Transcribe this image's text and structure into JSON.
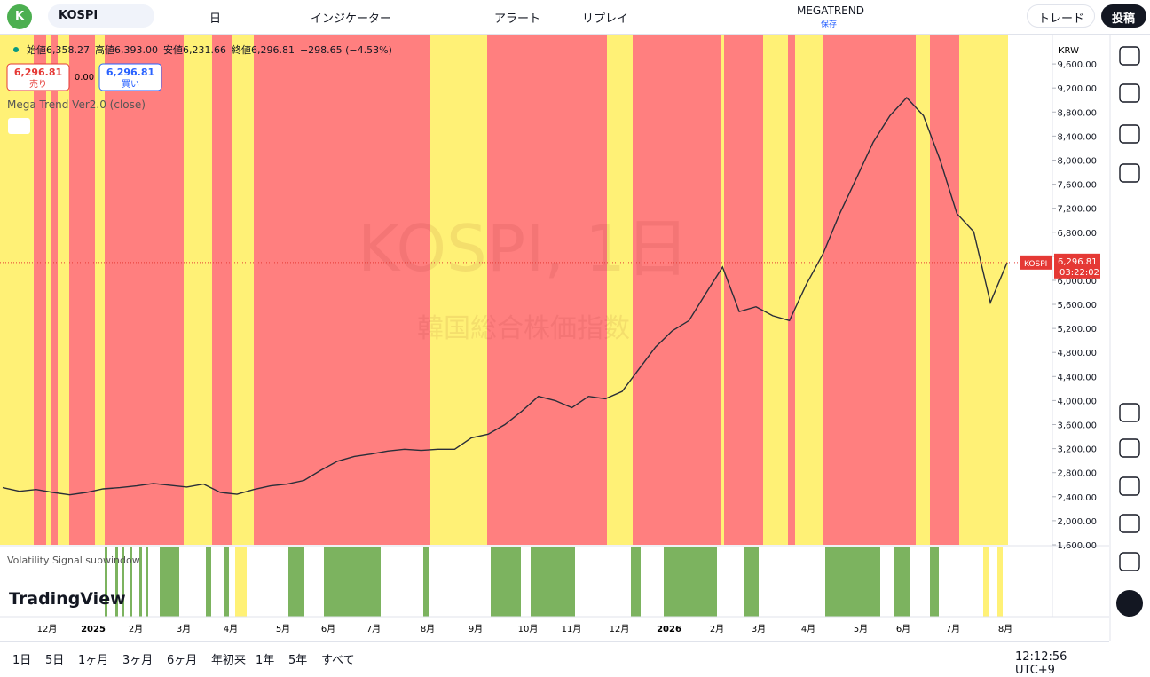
{
  "toolbar": {
    "avatar": "K",
    "symbol": "KOSPI",
    "interval": "日",
    "indicators": "インジケーター",
    "alert": "アラート",
    "replay": "リプレイ",
    "layout_name": "MEGATREND",
    "layout_status": "保存",
    "trade": "トレード",
    "publish": "投稿"
  },
  "legend": {
    "open_label": "始値",
    "open": "6,358.27",
    "high_label": "高値",
    "high": "6,393.00",
    "low_label": "安値",
    "low": "6,231.66",
    "close_label": "終値",
    "close": "6,296.81",
    "change": "−298.65 (−4.53%)"
  },
  "order": {
    "sell_price": "6,296.81",
    "sell": "売り",
    "spread": "0.00",
    "buy_price": "6,296.81",
    "buy": "買い"
  },
  "indicator": "Mega Trend Ver2.0 (close)",
  "watermark": {
    "title": "KOSPI, 1日",
    "subtitle": "韓国総合株価指数"
  },
  "subwindow": "Volatility Signal subwindow",
  "brand": "TradingView",
  "currency": "KRW",
  "last_price": {
    "symbol": "KOSPI",
    "price": "6,296.81",
    "countdown": "03:22:02"
  },
  "price_series": {
    "values": [
      2550,
      2490,
      2520,
      2470,
      2430,
      2470,
      2530,
      2550,
      2580,
      2620,
      2590,
      2560,
      2610,
      2470,
      2440,
      2520,
      2580,
      2610,
      2670,
      2840,
      2990,
      3070,
      3110,
      3160,
      3190,
      3170,
      3190,
      3190,
      3380,
      3440,
      3600,
      3820,
      4070,
      4000,
      3880,
      4070,
      4030,
      4150,
      4520,
      4890,
      5160,
      5330,
      5780,
      6220,
      5480,
      5560,
      5410,
      5330,
      5930,
      6440,
      7110,
      7700,
      8300,
      8740,
      9040,
      8740,
      8000,
      7110,
      6810,
      5630,
      6296.81
    ]
  },
  "price_axis": {
    "ylim": [
      1570,
      10074
    ],
    "yticks": [
      {
        "value": 1600,
        "label": "1,600.00"
      },
      {
        "value": 2000,
        "label": "2,000.00"
      },
      {
        "value": 2400,
        "label": "2,400.00"
      },
      {
        "value": 2800,
        "label": "2,800.00"
      },
      {
        "value": 3200,
        "label": "3,200.00"
      },
      {
        "value": 3600,
        "label": "3,600.00"
      },
      {
        "value": 4000,
        "label": "4,000.00"
      },
      {
        "value": 4400,
        "label": "4,400.00"
      },
      {
        "value": 4800,
        "label": "4,800.00"
      },
      {
        "value": 5200,
        "label": "5,200.00"
      },
      {
        "value": 5600,
        "label": "5,600.00"
      },
      {
        "value": 6000,
        "label": "6,000.00"
      },
      {
        "value": 6400,
        "label": "6,400.00"
      },
      {
        "value": 6800,
        "label": "6,800.00"
      },
      {
        "value": 7200,
        "label": "7,200.00"
      },
      {
        "value": 7600,
        "label": "7,600.00"
      },
      {
        "value": 8000,
        "label": "8,000.00"
      },
      {
        "value": 8400,
        "label": "8,400.00"
      },
      {
        "value": 8800,
        "label": "8,800.00"
      },
      {
        "value": 9200,
        "label": "9,200.00"
      },
      {
        "value": 9600,
        "label": "9,600.00"
      }
    ]
  },
  "time_axis": [
    "12月",
    "2025",
    "2月",
    "3月",
    "4月",
    "5月",
    "6月",
    "7月",
    "8月",
    "9月",
    "10月",
    "11月",
    "12月",
    "2026",
    "2月",
    "3月",
    "4月",
    "5月",
    "6月",
    "7月",
    "8月"
  ],
  "ranges": [
    "1日",
    "5日",
    "1ヶ月",
    "3ヶ月",
    "6ヶ月",
    "年初来",
    "1年",
    "5年",
    "すべて"
  ],
  "clock": "12:12:56 UTC+9"
}
